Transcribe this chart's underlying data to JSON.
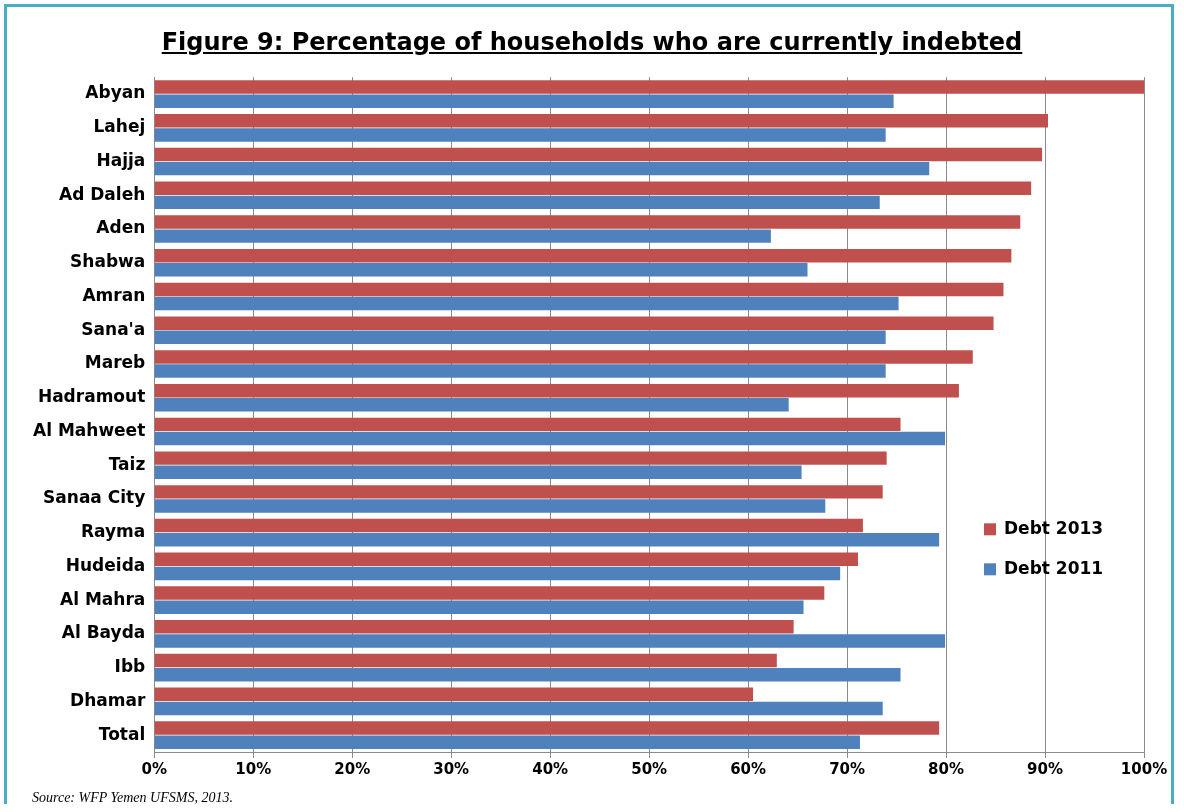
{
  "chart_data": {
    "type": "bar",
    "orientation": "horizontal",
    "title": "Figure 9: Percentage of households who are currently indebted",
    "categories": [
      "Abyan",
      "Lahej",
      "Hajja",
      "Ad Daleh",
      "Aden",
      "Shabwa",
      "Amran",
      "Sana'a",
      "Mareb",
      "Hadramout",
      "Al Mahweet",
      "Taiz",
      "Sanaa City",
      "Rayma",
      "Hudeida",
      "Al Mahra",
      "Al Bayda",
      "Ibb",
      "Dhamar",
      "Total"
    ],
    "series": [
      {
        "name": "Debt 2013",
        "color": "#c0504d",
        "values": [
          100,
          90.3,
          89.7,
          88.6,
          87.5,
          86.6,
          85.8,
          84.8,
          82.7,
          81.3,
          75.4,
          74,
          73.6,
          71.6,
          71.1,
          67.7,
          64.6,
          62.9,
          60.5,
          79.3
        ]
      },
      {
        "name": "Debt 2011",
        "color": "#4f81bd",
        "values": [
          74.7,
          73.9,
          78.3,
          73.3,
          62.3,
          66,
          75.2,
          73.9,
          73.9,
          64.1,
          79.9,
          65.4,
          67.8,
          79.3,
          69.3,
          65.6,
          79.9,
          75.4,
          73.6,
          71.3
        ]
      }
    ],
    "xlim": [
      0,
      100
    ],
    "xticks": [
      {
        "value": 0,
        "label": "0%"
      },
      {
        "value": 10,
        "label": "10%"
      },
      {
        "value": 20,
        "label": "20%"
      },
      {
        "value": 30,
        "label": "30%"
      },
      {
        "value": 40,
        "label": "40%"
      },
      {
        "value": 50,
        "label": "50%"
      },
      {
        "value": 60,
        "label": "60%"
      },
      {
        "value": 70,
        "label": "70%"
      },
      {
        "value": 80,
        "label": "80%"
      },
      {
        "value": 90,
        "label": "90%"
      },
      {
        "value": 100,
        "label": "100%"
      }
    ],
    "grid": "x",
    "legend": "right",
    "annotations": [
      "Source: WFP Yemen UFSMS, 2013."
    ]
  }
}
